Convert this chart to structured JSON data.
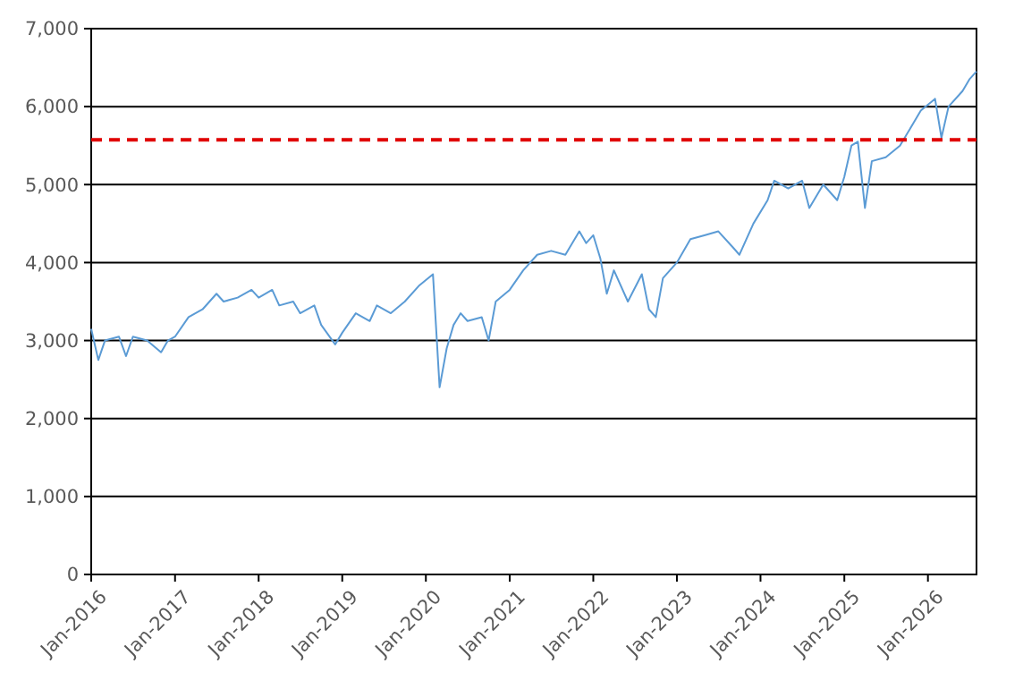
{
  "chart_data": {
    "type": "line",
    "x": [
      "2016-01",
      "2016-02",
      "2016-03",
      "2016-05",
      "2016-06",
      "2016-07",
      "2016-09",
      "2016-11",
      "2016-12",
      "2017-01",
      "2017-03",
      "2017-05",
      "2017-07",
      "2017-08",
      "2017-10",
      "2017-12",
      "2018-01",
      "2018-03",
      "2018-04",
      "2018-06",
      "2018-07",
      "2018-09",
      "2018-10",
      "2018-12",
      "2019-01",
      "2019-03",
      "2019-05",
      "2019-06",
      "2019-08",
      "2019-10",
      "2019-12",
      "2020-02",
      "2020-03",
      "2020-04",
      "2020-05",
      "2020-06",
      "2020-07",
      "2020-09",
      "2020-10",
      "2020-11",
      "2021-01",
      "2021-03",
      "2021-05",
      "2021-07",
      "2021-09",
      "2021-11",
      "2021-12",
      "2022-01",
      "2022-02",
      "2022-03",
      "2022-04",
      "2022-06",
      "2022-08",
      "2022-09",
      "2022-10",
      "2022-11",
      "2023-01",
      "2023-03",
      "2023-05",
      "2023-07",
      "2023-09",
      "2023-10",
      "2023-12",
      "2024-02",
      "2024-03",
      "2024-05",
      "2024-07",
      "2024-08",
      "2024-10",
      "2024-12",
      "2025-01",
      "2025-02",
      "2025-03",
      "2025-04",
      "2025-05",
      "2025-07",
      "2025-09",
      "2025-11",
      "2025-12",
      "2026-02",
      "2026-03",
      "2026-04",
      "2026-06",
      "2026-07",
      "2026-08"
    ],
    "series": [
      {
        "color": "#5b9bd5",
        "values": [
          3150,
          2750,
          3000,
          3050,
          2800,
          3050,
          3000,
          2850,
          3000,
          3050,
          3300,
          3400,
          3600,
          3500,
          3550,
          3650,
          3550,
          3650,
          3450,
          3500,
          3350,
          3450,
          3200,
          2950,
          3100,
          3350,
          3250,
          3450,
          3350,
          3500,
          3700,
          3850,
          2400,
          2900,
          3200,
          3350,
          3250,
          3300,
          3000,
          3500,
          3650,
          3900,
          4100,
          4150,
          4100,
          4400,
          4250,
          4350,
          4050,
          3600,
          3900,
          3500,
          3850,
          3400,
          3300,
          3800,
          4000,
          4300,
          4350,
          4400,
          4200,
          4100,
          4500,
          4800,
          5050,
          4950,
          5050,
          4700,
          5000,
          4800,
          5100,
          5500,
          5550,
          4700,
          5300,
          5350,
          5500,
          5800,
          5950,
          6100,
          5600,
          6000,
          6200,
          6350,
          6450
        ]
      }
    ],
    "xlim": [
      "2016-01",
      "2026-08"
    ],
    "xticks": [
      {
        "value": "2016-01",
        "label": "Jan-2016"
      },
      {
        "value": "2017-01",
        "label": "Jan-2017"
      },
      {
        "value": "2018-01",
        "label": "Jan-2018"
      },
      {
        "value": "2019-01",
        "label": "Jan-2019"
      },
      {
        "value": "2020-01",
        "label": "Jan-2020"
      },
      {
        "value": "2021-01",
        "label": "Jan-2021"
      },
      {
        "value": "2022-01",
        "label": "Jan-2022"
      },
      {
        "value": "2023-01",
        "label": "Jan-2023"
      },
      {
        "value": "2024-01",
        "label": "Jan-2024"
      },
      {
        "value": "2025-01",
        "label": "Jan-2025"
      },
      {
        "value": "2026-01",
        "label": "Jan-2026"
      }
    ],
    "ylim": [
      0,
      7000
    ],
    "yticks": [
      0,
      {
        "value": 1000,
        "label": "1,000"
      },
      {
        "value": 2000,
        "label": "2,000"
      },
      {
        "value": 3000,
        "label": "3,000"
      },
      {
        "value": 4000,
        "label": "4,000"
      },
      {
        "value": 5000,
        "label": "5,000"
      },
      {
        "value": 6000,
        "label": "6,000"
      },
      {
        "value": 7000,
        "label": "7,000"
      }
    ],
    "grid": "y",
    "ref_lines": [
      {
        "axis": "y",
        "value": 5575,
        "color": "#e00000",
        "line_style": "dashed"
      }
    ]
  }
}
